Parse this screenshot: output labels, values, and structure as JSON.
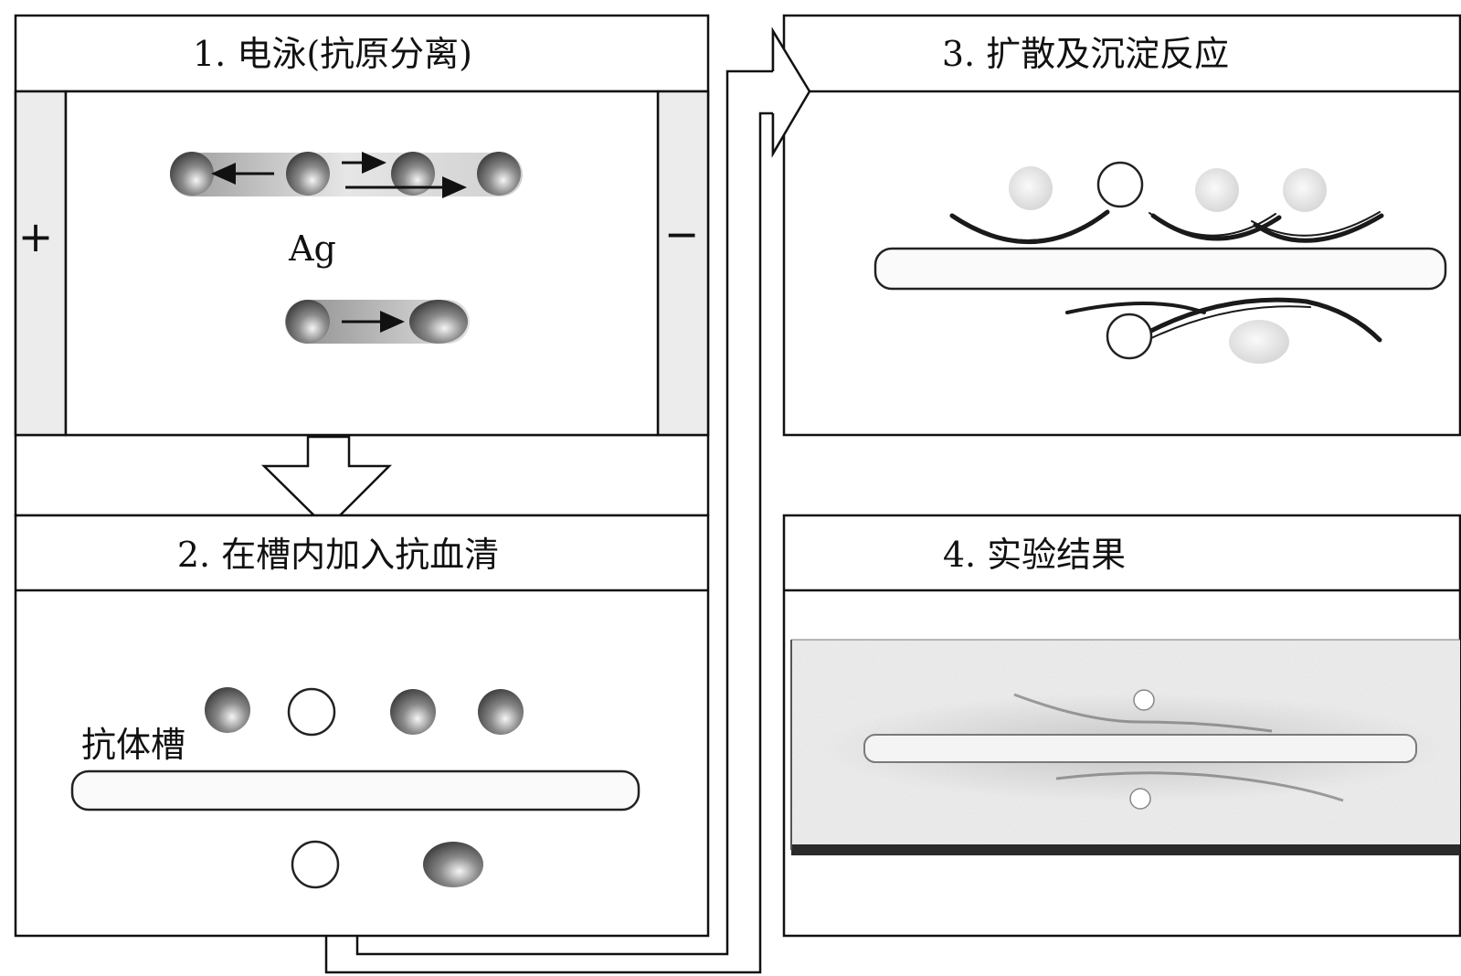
{
  "panels": {
    "p1": {
      "title": "1. 电泳(抗原分离)",
      "plus": "+",
      "minus": "−",
      "ag": "Ag"
    },
    "p2": {
      "title": "2. 在槽内加入抗血清",
      "antibody_trough": "抗体槽"
    },
    "p3": {
      "title": "3. 扩散及沉淀反应"
    },
    "p4": {
      "title": "4. 实验结果"
    }
  }
}
